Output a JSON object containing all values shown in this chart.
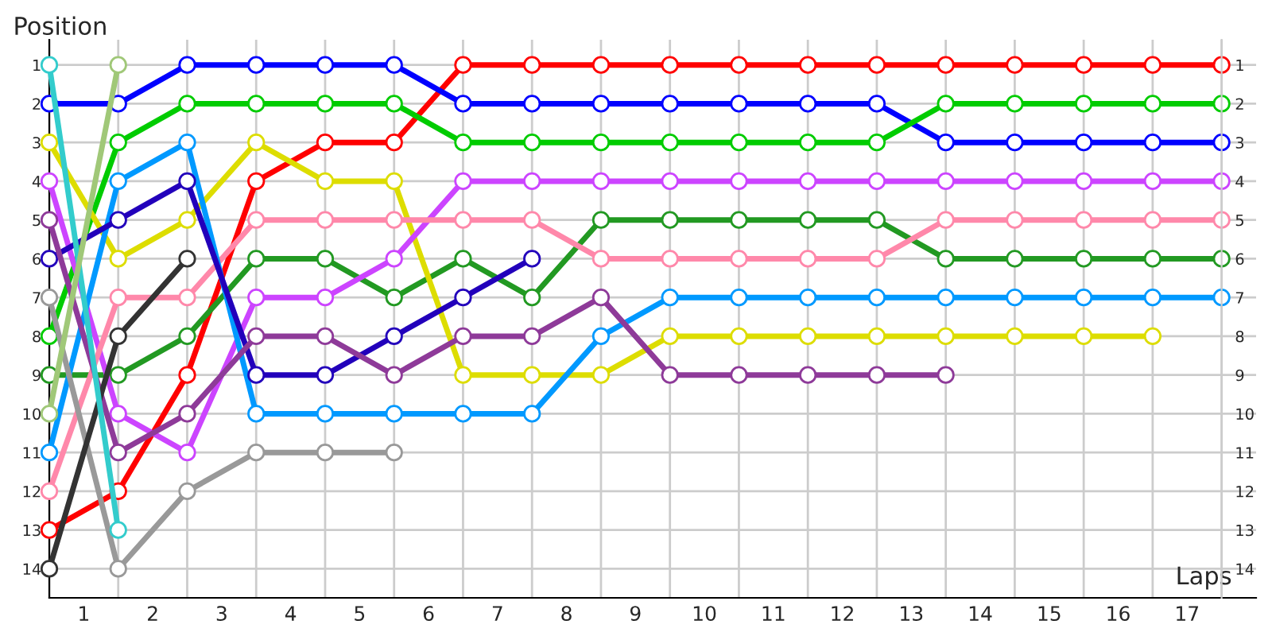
{
  "chart_data": {
    "type": "line",
    "xlabel": "Laps",
    "ylabel": "Position",
    "xlim": [
      0,
      17.5
    ],
    "xticks": [
      {
        "value": 0,
        "label": null
      },
      {
        "value": 0.5,
        "label": "1"
      },
      {
        "value": 1,
        "label": null
      },
      {
        "value": 1.5,
        "label": "2"
      },
      {
        "value": 2,
        "label": null
      },
      {
        "value": 2.5,
        "label": "3"
      },
      {
        "value": 3,
        "label": null
      },
      {
        "value": 3.5,
        "label": "4"
      },
      {
        "value": 4,
        "label": null
      },
      {
        "value": 4.5,
        "label": "5"
      },
      {
        "value": 5,
        "label": null
      },
      {
        "value": 5.5,
        "label": "6"
      },
      {
        "value": 6,
        "label": null
      },
      {
        "value": 6.5,
        "label": "7"
      },
      {
        "value": 7,
        "label": null
      },
      {
        "value": 7.5,
        "label": "8"
      },
      {
        "value": 8,
        "label": null
      },
      {
        "value": 8.5,
        "label": "9"
      },
      {
        "value": 9,
        "label": null
      },
      {
        "value": 9.5,
        "label": "10"
      },
      {
        "value": 10,
        "label": null
      },
      {
        "value": 10.5,
        "label": "11"
      },
      {
        "value": 11,
        "label": null
      },
      {
        "value": 11.5,
        "label": "12"
      },
      {
        "value": 12,
        "label": null
      },
      {
        "value": 12.5,
        "label": "13"
      },
      {
        "value": 13,
        "label": null
      },
      {
        "value": 13.5,
        "label": "14"
      },
      {
        "value": 14,
        "label": null
      },
      {
        "value": 14.5,
        "label": "15"
      },
      {
        "value": 15,
        "label": null
      },
      {
        "value": 15.5,
        "label": "16"
      },
      {
        "value": 16,
        "label": null
      },
      {
        "value": 16.5,
        "label": "17"
      },
      {
        "value": 17,
        "label": null
      }
    ],
    "ylim": [
      14.75,
      0.35
    ],
    "yticks": [
      1,
      2,
      3,
      4,
      5,
      6,
      7,
      8,
      9,
      10,
      11,
      12,
      13,
      14
    ],
    "y2lim": [
      14.75,
      0.35
    ],
    "y2ticks": [
      1,
      2,
      3,
      4,
      5,
      6,
      7,
      8,
      9,
      10,
      11,
      12,
      13,
      14
    ],
    "x": [
      0,
      1,
      2,
      3,
      4,
      5,
      6,
      7,
      8,
      9,
      10,
      11,
      12,
      13,
      14,
      15,
      16,
      17
    ],
    "grid": true,
    "legend": false,
    "marker": "circle",
    "line_style": "solid",
    "series": [
      {
        "color": "#ff0000",
        "values": [
          13,
          12,
          9,
          4,
          3,
          3,
          1,
          1,
          1,
          1,
          1,
          1,
          1,
          1,
          1,
          1,
          1,
          1
        ]
      },
      {
        "color": "#0000ff",
        "values": [
          2,
          2,
          1,
          1,
          1,
          1,
          2,
          2,
          2,
          2,
          2,
          2,
          2,
          3,
          3,
          3,
          3,
          3
        ]
      },
      {
        "color": "#00cc00",
        "values": [
          8,
          3,
          2,
          2,
          2,
          2,
          3,
          3,
          3,
          3,
          3,
          3,
          3,
          2,
          2,
          2,
          2,
          2
        ]
      },
      {
        "color": "#229922",
        "values": [
          9,
          9,
          8,
          6,
          6,
          7,
          6,
          7,
          5,
          5,
          5,
          5,
          5,
          6,
          6,
          6,
          6,
          6
        ]
      },
      {
        "color": "#dddd00",
        "values": [
          3,
          6,
          5,
          3,
          4,
          4,
          9,
          9,
          9,
          8,
          8,
          8,
          8,
          8,
          8,
          8,
          8,
          null
        ]
      },
      {
        "color": "#cc44ff",
        "values": [
          4,
          10,
          11,
          7,
          7,
          6,
          4,
          4,
          4,
          4,
          4,
          4,
          4,
          4,
          4,
          4,
          4,
          4
        ]
      },
      {
        "color": "#ff88aa",
        "values": [
          12,
          7,
          7,
          5,
          5,
          5,
          5,
          5,
          6,
          6,
          6,
          6,
          6,
          5,
          5,
          5,
          5,
          5
        ]
      },
      {
        "color": "#0099ff",
        "values": [
          11,
          4,
          3,
          10,
          10,
          10,
          10,
          10,
          8,
          7,
          7,
          7,
          7,
          7,
          7,
          7,
          7,
          7
        ]
      },
      {
        "color": "#2200bb",
        "values": [
          6,
          5,
          4,
          9,
          9,
          8,
          7,
          6,
          null,
          null,
          null,
          null,
          null,
          null,
          null,
          null,
          null,
          null
        ]
      },
      {
        "color": "#8e3a99",
        "values": [
          5,
          11,
          10,
          8,
          8,
          9,
          8,
          8,
          7,
          9,
          9,
          9,
          9,
          9,
          null,
          null,
          null,
          null
        ]
      },
      {
        "color": "#999999",
        "values": [
          7,
          14,
          12,
          11,
          11,
          11,
          null,
          null,
          null,
          null,
          null,
          null,
          null,
          null,
          null,
          null,
          null,
          null
        ]
      },
      {
        "color": "#333333",
        "values": [
          14,
          8,
          6,
          null,
          null,
          null,
          null,
          null,
          null,
          null,
          null,
          null,
          null,
          null,
          null,
          null,
          null,
          null
        ]
      },
      {
        "color": "#33cccc",
        "values": [
          1,
          13,
          null,
          null,
          null,
          null,
          null,
          null,
          null,
          null,
          null,
          null,
          null,
          null,
          null,
          null,
          null,
          null
        ]
      },
      {
        "color": "#a0c878",
        "values": [
          10,
          1,
          null,
          null,
          null,
          null,
          null,
          null,
          null,
          null,
          null,
          null,
          null,
          null,
          null,
          null,
          null,
          null
        ]
      }
    ]
  }
}
